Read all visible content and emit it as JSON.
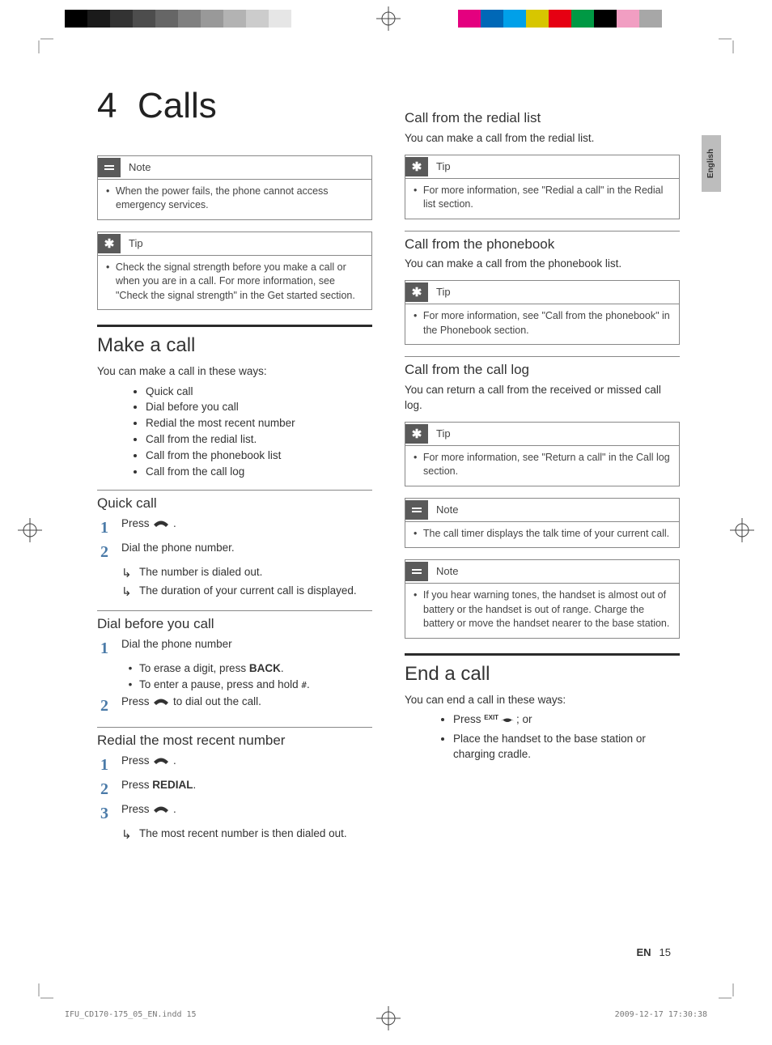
{
  "colorbar_left": [
    "#000000",
    "#1a1a1a",
    "#333333",
    "#4d4d4d",
    "#666666",
    "#808080",
    "#999999",
    "#b3b3b3",
    "#cccccc",
    "#e6e6e6",
    "#ffffff",
    "#ffffff"
  ],
  "colorbar_right": [
    "#ffffff",
    "#e4007f",
    "#0068b7",
    "#00a0e9",
    "#d7c600",
    "#e60012",
    "#009944",
    "#000000",
    "#f19ec2",
    "#a7a7a7",
    "#ffffff",
    "#ffffff"
  ],
  "chapter": {
    "number": "4",
    "title": "Calls"
  },
  "note1": {
    "label": "Note",
    "text": "When the power fails, the phone cannot access emergency services."
  },
  "tip1": {
    "label": "Tip",
    "text": "Check the signal strength before you make a call or when you are in a call. For more information, see \"Check the signal strength\" in the Get started section."
  },
  "make_call": {
    "heading": "Make a call",
    "intro": "You can make a call in these ways:",
    "ways": [
      "Quick call",
      "Dial before you call",
      "Redial the most recent number",
      "Call from the redial list.",
      "Call from the phonebook list",
      "Call from the call log"
    ]
  },
  "quick": {
    "heading": "Quick call",
    "s1": "Press ",
    "s2": "Dial the phone number.",
    "r1": "The number is dialed out.",
    "r2": "The duration of your current call is displayed."
  },
  "dialbefore": {
    "heading": "Dial before you call",
    "s1": "Dial the phone number",
    "b1a": "To erase a digit, press ",
    "b1a_key": "BACK",
    "b1b": "To enter a pause, press and hold ",
    "s2a": "Press ",
    "s2b": " to dial out the call."
  },
  "redial": {
    "heading": "Redial the most recent number",
    "s1": "Press ",
    "s2a": "Press ",
    "s2b": "REDIAL",
    "s3": "Press ",
    "r1": "The most recent number is then dialed out."
  },
  "redial_list": {
    "heading": "Call from the redial list",
    "intro": "You can make a call from the redial list.",
    "tip": {
      "label": "Tip",
      "text": "For more information, see \"Redial a call\" in the Redial list section."
    }
  },
  "phonebook": {
    "heading": "Call from the phonebook",
    "intro": "You can make a call from the phonebook list.",
    "tip": {
      "label": "Tip",
      "text": "For more information, see \"Call from the phonebook\" in the Phonebook section."
    }
  },
  "calllog": {
    "heading": "Call from the call log",
    "intro": "You can return a call from the received or missed call log.",
    "tip": {
      "label": "Tip",
      "text": "For more information, see \"Return a call\" in the Call log section."
    },
    "note1": {
      "label": "Note",
      "text": "The call timer displays the talk time of your current call."
    },
    "note2": {
      "label": "Note",
      "text": "If you hear warning tones, the handset is almost out of battery or the handset is out of range. Charge the battery or move the handset nearer to the base station."
    }
  },
  "end": {
    "heading": "End a call",
    "intro": "You can end a call in these ways:",
    "b1a": "Press ",
    "b1b": "; or",
    "b2": "Place the handset to the base station or charging cradle."
  },
  "side_tab": "English",
  "footer": {
    "lang": "EN",
    "page": "15",
    "file": "IFU_CD170-175_05_EN.indd   15",
    "timestamp": "2009-12-17   17:30:38"
  }
}
